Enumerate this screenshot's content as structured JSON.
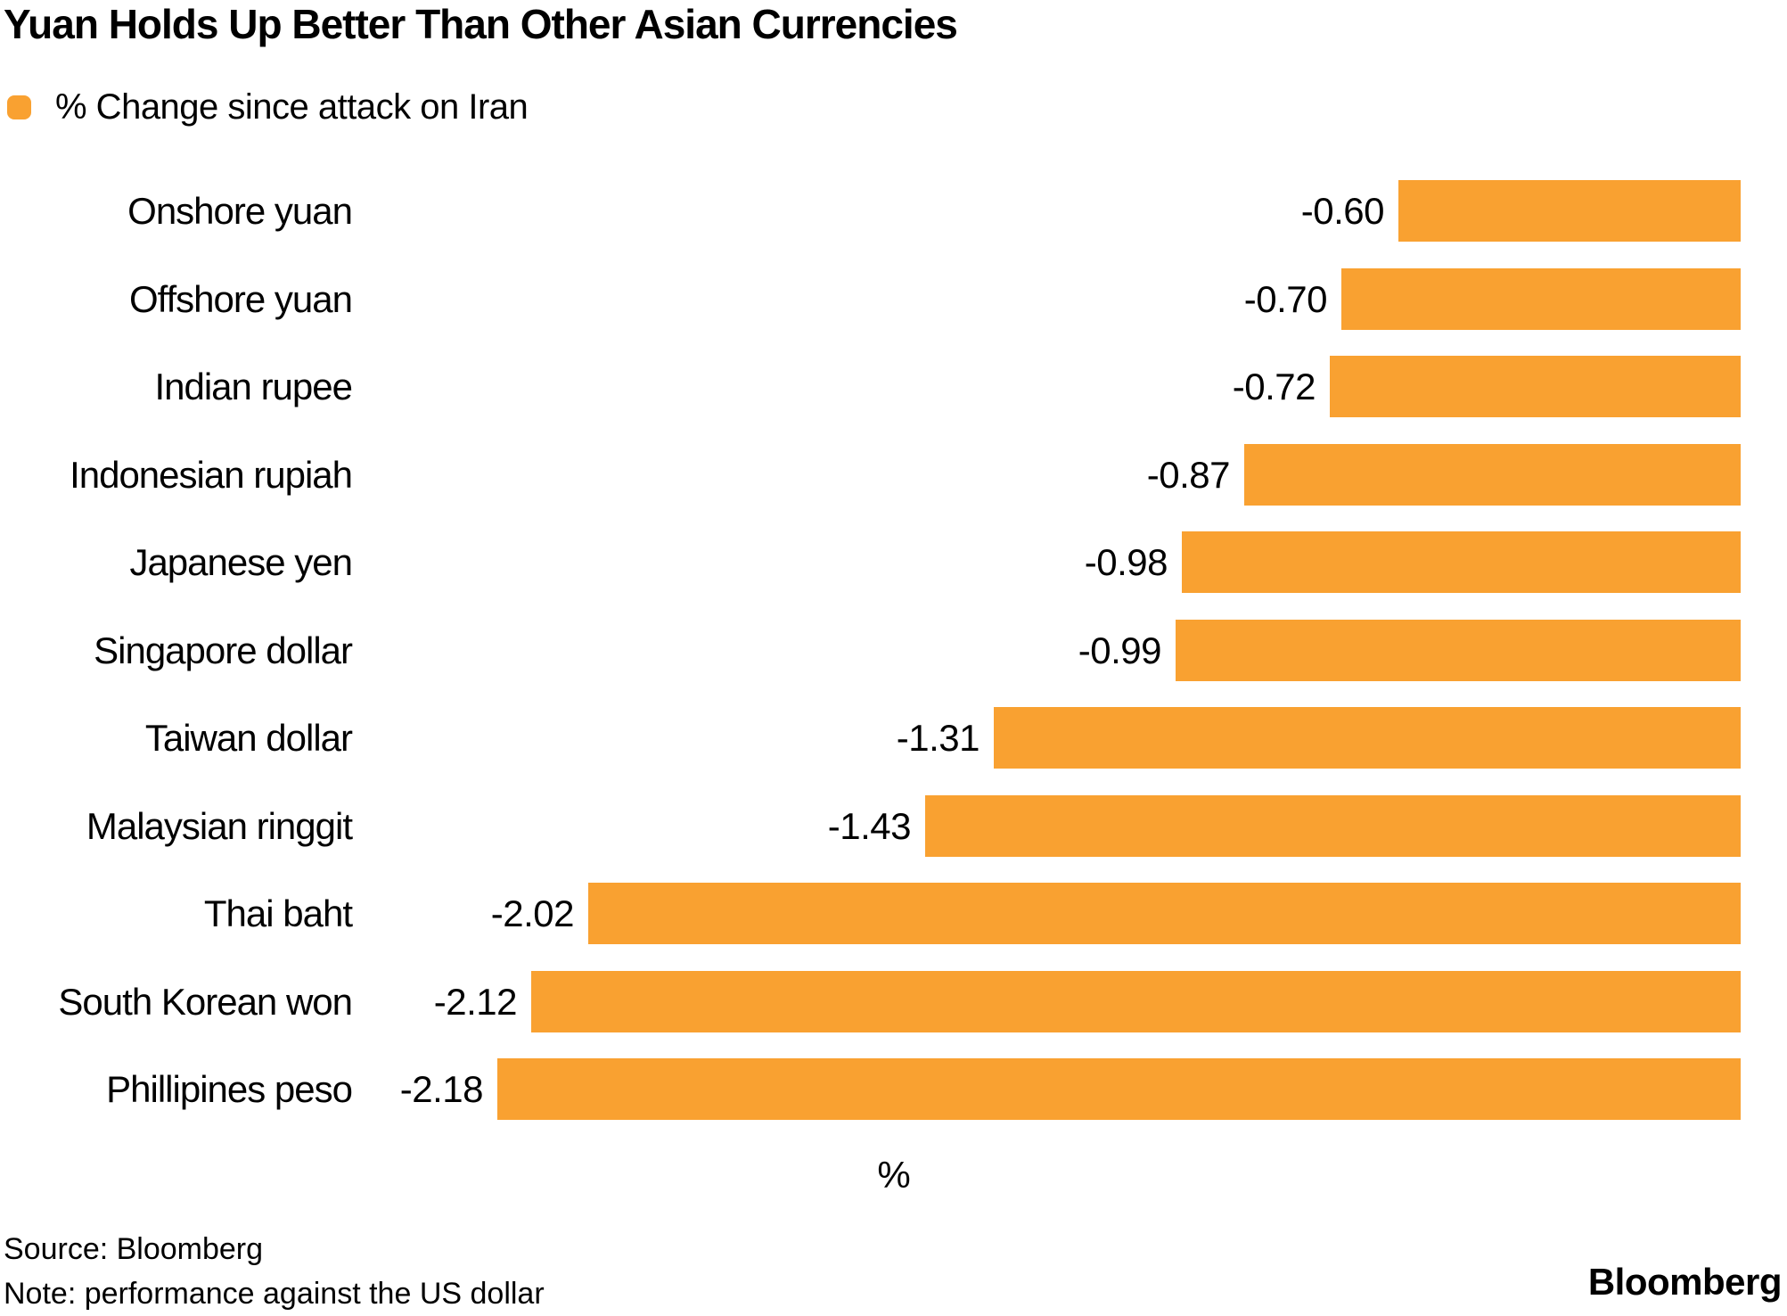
{
  "title": "Yuan Holds Up Better Than Other Asian Currencies",
  "legend": {
    "label": "% Change since attack on Iran",
    "swatch_color": "#F9A131"
  },
  "chart_data": {
    "type": "bar",
    "orientation": "horizontal",
    "baseline": "right",
    "grid": false,
    "legend_position": "top-left",
    "bar_color": "#F9A131",
    "categories": [
      "Onshore yuan",
      "Offshore yuan",
      "Indian rupee",
      "Indonesian rupiah",
      "Japanese yen",
      "Singapore dollar",
      "Taiwan dollar",
      "Malaysian ringgit",
      "Thai baht",
      "South Korean won",
      "Phillipines peso"
    ],
    "values": [
      -0.6,
      -0.7,
      -0.72,
      -0.87,
      -0.98,
      -0.99,
      -1.31,
      -1.43,
      -2.02,
      -2.12,
      -2.18
    ],
    "value_labels": [
      "-0.60",
      "-0.70",
      "-0.72",
      "-0.87",
      "-0.98",
      "-0.99",
      "-1.31",
      "-1.43",
      "-2.02",
      "-2.12",
      "-2.18"
    ],
    "xlabel": "%",
    "ylabel": "",
    "xlim": [
      -2.4,
      0
    ]
  },
  "footer": {
    "source": "Source: Bloomberg",
    "note": "Note: performance against the US dollar",
    "brand": "Bloomberg"
  }
}
